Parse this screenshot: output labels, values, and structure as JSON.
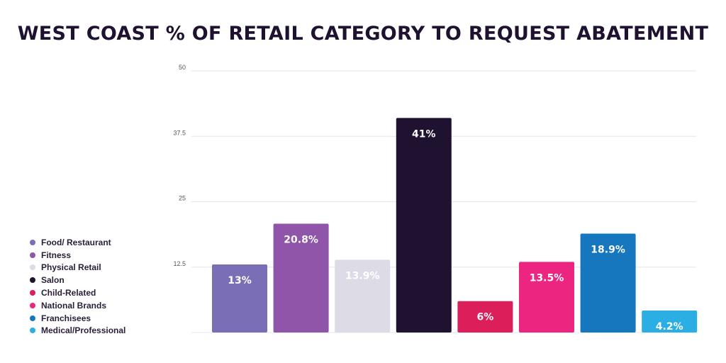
{
  "chart_data": {
    "type": "bar",
    "title": "WEST COAST % OF RETAIL CATEGORY TO REQUEST ABATEMENT",
    "categories": [
      "Food/ Restaurant",
      "Fitness",
      "Physical Retail",
      "Salon",
      "Child-Related",
      "National Brands",
      "Franchisees",
      "Medical/Professional"
    ],
    "values": [
      13,
      20.8,
      13.9,
      41,
      6,
      13.5,
      18.9,
      4.2
    ],
    "data_labels": [
      "13%",
      "20.8%",
      "13.9%",
      "41%",
      "6%",
      "13.5%",
      "18.9%",
      "4.2%"
    ],
    "colors": [
      "#7a6eb6",
      "#8e55a8",
      "#dddbe6",
      "#1f1230",
      "#dc1f5b",
      "#ec2581",
      "#1677bf",
      "#2aaee3"
    ],
    "label_colors": [
      "#ffffff",
      "#ffffff",
      "#ffffff",
      "#ffffff",
      "#ffffff",
      "#ffffff",
      "#ffffff",
      "#ffffff"
    ],
    "yticks": [
      "50",
      "37.5",
      "25",
      "12.5"
    ],
    "ytick_values": [
      50,
      37.5,
      25,
      12.5
    ],
    "ylim": [
      0,
      50
    ],
    "xlabel": "",
    "ylabel": "",
    "grid": true,
    "legend_position": "left"
  }
}
